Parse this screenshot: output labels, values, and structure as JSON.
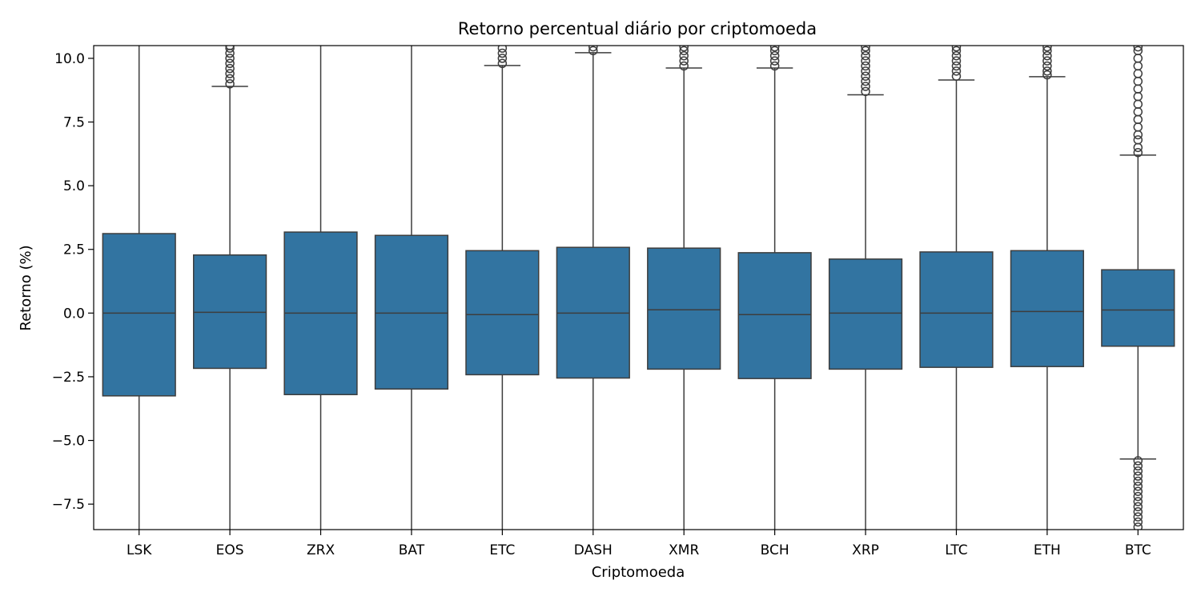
{
  "chart_data": {
    "type": "boxplot",
    "title": "Retorno percentual diário por criptomoeda",
    "xlabel": "Criptomoeda",
    "ylabel": "Retorno (%)",
    "ylim": [
      -8.5,
      10.5
    ],
    "yticks": [
      -7.5,
      -5.0,
      -2.5,
      0.0,
      2.5,
      5.0,
      7.5,
      10.0
    ],
    "ytick_labels": [
      "−7.5",
      "−5.0",
      "−2.5",
      "0.0",
      "2.5",
      "5.0",
      "7.5",
      "10.0"
    ],
    "grid": false,
    "legend": "none",
    "box_color": "#3274a1",
    "line_color": "#3d3d3d",
    "categories": [
      "LSK",
      "EOS",
      "ZRX",
      "BAT",
      "ETC",
      "DASH",
      "XMR",
      "BCH",
      "XRP",
      "LTC",
      "ETH",
      "BTC"
    ],
    "boxes": [
      {
        "q1": -3.25,
        "median": 0.0,
        "q3": 3.12,
        "whisker_low": -8.6,
        "whisker_high": 10.6,
        "outliers_low": [],
        "outliers_high": []
      },
      {
        "q1": -2.17,
        "median": 0.03,
        "q3": 2.28,
        "whisker_low": -8.6,
        "whisker_high": 8.9,
        "outliers_low": [],
        "outliers_high": [
          9.0,
          9.2,
          9.4,
          9.6,
          9.8,
          10.0,
          10.2,
          10.4,
          10.5
        ]
      },
      {
        "q1": -3.2,
        "median": 0.0,
        "q3": 3.18,
        "whisker_low": -8.6,
        "whisker_high": 10.6,
        "outliers_low": [],
        "outliers_high": []
      },
      {
        "q1": -2.98,
        "median": 0.0,
        "q3": 3.05,
        "whisker_low": -8.6,
        "whisker_high": 10.6,
        "outliers_low": [],
        "outliers_high": []
      },
      {
        "q1": -2.42,
        "median": -0.06,
        "q3": 2.45,
        "whisker_low": -8.6,
        "whisker_high": 9.72,
        "outliers_low": [],
        "outliers_high": [
          9.8,
          10.0,
          10.2,
          10.4
        ]
      },
      {
        "q1": -2.55,
        "median": 0.0,
        "q3": 2.58,
        "whisker_low": -8.6,
        "whisker_high": 10.22,
        "outliers_low": [],
        "outliers_high": [
          10.3,
          10.45
        ]
      },
      {
        "q1": -2.2,
        "median": 0.13,
        "q3": 2.55,
        "whisker_low": -8.6,
        "whisker_high": 9.62,
        "outliers_low": [],
        "outliers_high": [
          9.7,
          9.9,
          10.1,
          10.3,
          10.45
        ]
      },
      {
        "q1": -2.57,
        "median": -0.06,
        "q3": 2.37,
        "whisker_low": -8.6,
        "whisker_high": 9.62,
        "outliers_low": [],
        "outliers_high": [
          9.7,
          9.9,
          10.1,
          10.3,
          10.45
        ]
      },
      {
        "q1": -2.2,
        "median": 0.0,
        "q3": 2.12,
        "whisker_low": -8.6,
        "whisker_high": 8.57,
        "outliers_low": [],
        "outliers_high": [
          8.7,
          8.9,
          9.1,
          9.3,
          9.5,
          9.7,
          9.9,
          10.1,
          10.3,
          10.45
        ]
      },
      {
        "q1": -2.13,
        "median": 0.0,
        "q3": 2.4,
        "whisker_low": -8.6,
        "whisker_high": 9.15,
        "outliers_low": [],
        "outliers_high": [
          9.3,
          9.5,
          9.7,
          9.9,
          10.1,
          10.3,
          10.45
        ]
      },
      {
        "q1": -2.1,
        "median": 0.06,
        "q3": 2.45,
        "whisker_low": -8.6,
        "whisker_high": 9.28,
        "outliers_low": [],
        "outliers_high": [
          9.35,
          9.5,
          9.7,
          9.9,
          10.1,
          10.3,
          10.45
        ]
      },
      {
        "q1": -1.3,
        "median": 0.12,
        "q3": 1.7,
        "whisker_low": -5.73,
        "whisker_high": 6.2,
        "outliers_low": [
          -5.8,
          -6.0,
          -6.2,
          -6.4,
          -6.6,
          -6.8,
          -7.0,
          -7.2,
          -7.4,
          -7.6,
          -7.8,
          -8.0,
          -8.2,
          -8.4
        ],
        "outliers_high": [
          6.3,
          6.5,
          6.8,
          7.0,
          7.3,
          7.6,
          7.9,
          8.2,
          8.5,
          8.8,
          9.1,
          9.4,
          9.7,
          10.0,
          10.3,
          10.45
        ]
      }
    ]
  }
}
